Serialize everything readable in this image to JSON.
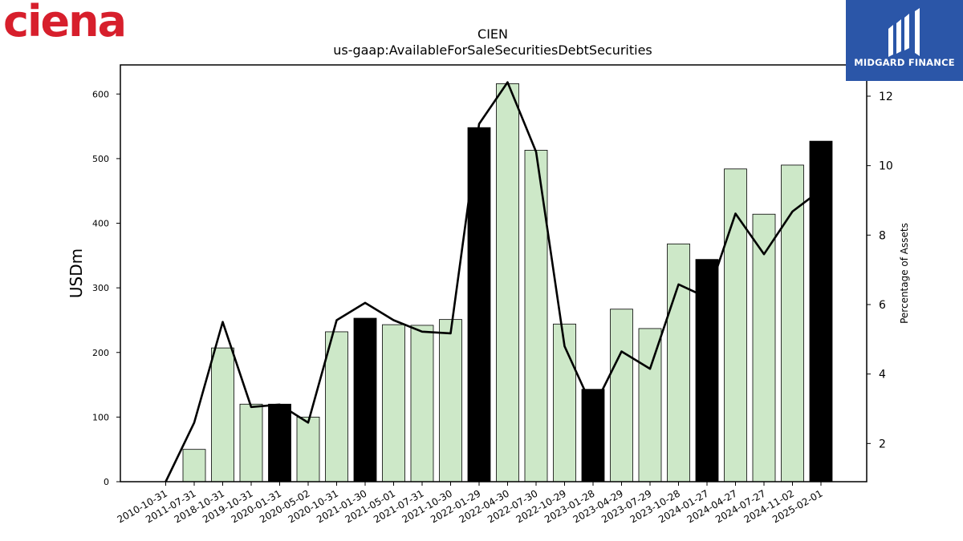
{
  "branding": {
    "left_logo_text": "ciena",
    "left_logo_color": "#d71f2c",
    "right_logo_text": "MIDGARD FINANCE",
    "right_logo_bg": "#2b56a8"
  },
  "chart_data": {
    "type": "bar",
    "title": "CIEN",
    "subtitle": "us-gaap:AvailableForSaleSecuritiesDebtSecurities",
    "ylabel": "USDm",
    "y2label": "Percentage of Assets",
    "ylim": [
      0,
      645
    ],
    "y2lim": [
      0.9,
      12.9
    ],
    "yticks": [
      0,
      100,
      200,
      300,
      400,
      500,
      600
    ],
    "y2ticks": [
      2,
      4,
      6,
      8,
      10,
      12
    ],
    "categories": [
      "2010-10-31",
      "2011-07-31",
      "2018-10-31",
      "2019-10-31",
      "2020-01-31",
      "2020-05-02",
      "2020-10-31",
      "2021-01-30",
      "2021-05-01",
      "2021-07-31",
      "2021-10-30",
      "2022-01-29",
      "2022-04-30",
      "2022-07-30",
      "2022-10-29",
      "2023-01-28",
      "2023-04-29",
      "2023-07-29",
      "2023-10-28",
      "2024-01-27",
      "2024-04-27",
      "2024-07-27",
      "2024-11-02",
      "2025-02-01"
    ],
    "series": [
      {
        "values": [
          0,
          50,
          207,
          120,
          120,
          100,
          232,
          253,
          243,
          242,
          251,
          548,
          616,
          513,
          244,
          143,
          267,
          237,
          368,
          344,
          484,
          414,
          490,
          527
        ],
        "highlight": [
          false,
          false,
          false,
          false,
          true,
          false,
          false,
          true,
          false,
          false,
          false,
          true,
          false,
          false,
          false,
          true,
          false,
          false,
          false,
          true,
          false,
          false,
          false,
          true
        ],
        "color": "#cde8c8",
        "highlight_color": "#000000"
      },
      {
        "axis": "right",
        "values": [
          0.9,
          2.6,
          5.5,
          3.05,
          3.12,
          2.6,
          5.55,
          6.05,
          5.55,
          5.22,
          5.17,
          11.2,
          12.4,
          10.4,
          4.8,
          3.0,
          4.65,
          4.15,
          6.58,
          6.2,
          8.62,
          7.45,
          8.68,
          9.3
        ]
      }
    ]
  }
}
